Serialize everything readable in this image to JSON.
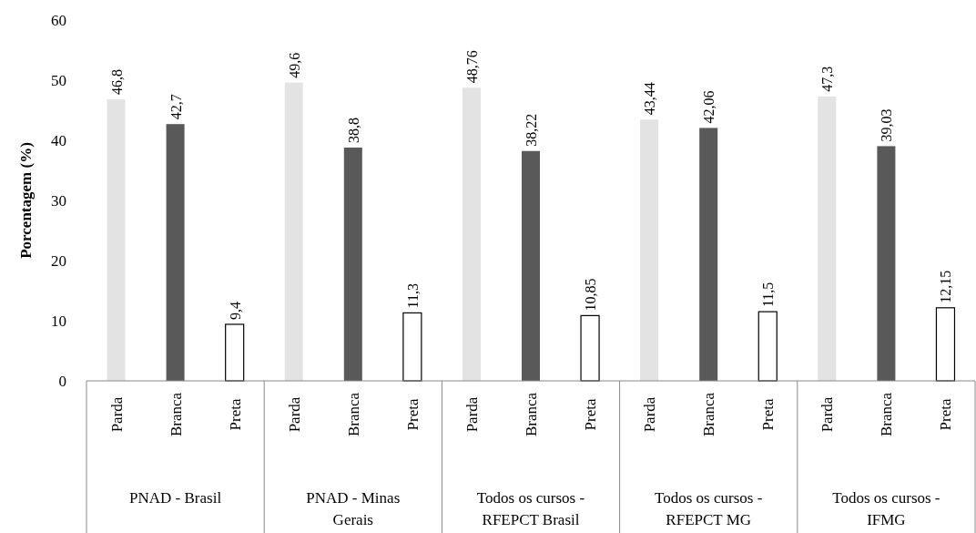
{
  "chart_data": {
    "type": "bar",
    "ylabel": "Porcentagem (%)",
    "categories": [
      "PNAD - Brasil",
      "PNAD - Minas Gerais",
      "Todos os cursos - RFEPCT Brasil",
      "Todos os cursos - RFEPCT MG",
      "Todos os cursos - IFMG"
    ],
    "series": [
      {
        "name": "Parda",
        "color": "#e3e3e3",
        "values": [
          46.8,
          49.6,
          48.76,
          43.44,
          47.3
        ],
        "value_labels": [
          "46,8",
          "49,6",
          "48,76",
          "43,44",
          "47,3"
        ]
      },
      {
        "name": "Branca",
        "color": "#595959",
        "values": [
          42.7,
          38.8,
          38.22,
          42.06,
          39.03
        ],
        "value_labels": [
          "42,7",
          "38,8",
          "38,22",
          "42,06",
          "39,03"
        ]
      },
      {
        "name": "Preta",
        "color": "#ffffff",
        "values": [
          9.4,
          11.3,
          10.85,
          11.5,
          12.15
        ],
        "value_labels": [
          "9,4",
          "11,3",
          "10,85",
          "11,5",
          "12,15"
        ]
      }
    ],
    "ylim": [
      0,
      60
    ],
    "yticks": [
      0,
      10,
      20,
      30,
      40,
      50,
      60
    ],
    "grid": false
  }
}
